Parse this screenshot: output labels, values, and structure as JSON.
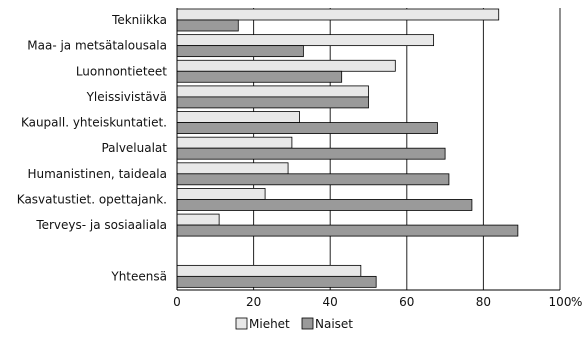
{
  "chart_data": {
    "type": "bar",
    "orientation": "horizontal",
    "categories": [
      "Tekniikka",
      "Maa- ja metsätalousala",
      "Luonnontieteet",
      "Yleissivistävä",
      "Kaupall. yhteiskuntatiet.",
      "Palvelualat",
      "Humanistinen, taideala",
      "Kasvatustiet. opettajank.",
      "Terveys- ja sosiaaliala",
      "",
      "Yhteensä"
    ],
    "series": [
      {
        "name": "Miehet",
        "color": "#e8e8e8",
        "values": [
          84,
          67,
          57,
          50,
          32,
          30,
          29,
          23,
          11,
          null,
          48
        ]
      },
      {
        "name": "Naiset",
        "color": "#9a9a9a",
        "values": [
          16,
          33,
          43,
          50,
          68,
          70,
          71,
          77,
          89,
          null,
          52
        ]
      }
    ],
    "xlim": [
      0,
      100
    ],
    "xticks": [
      0,
      20,
      40,
      60,
      80,
      100
    ],
    "x_unit": "%",
    "grid": "vertical",
    "legend_position": "bottom"
  }
}
